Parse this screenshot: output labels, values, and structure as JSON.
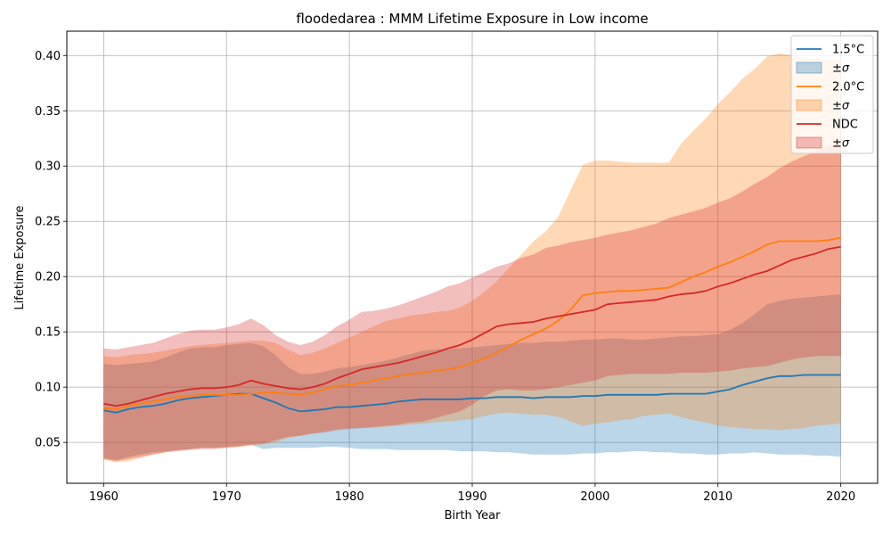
{
  "chart_data": {
    "type": "line",
    "title": "floodedarea : MMM Lifetime Exposure in Low income",
    "xlabel": "Birth Year",
    "ylabel": "Lifetime Exposure",
    "xlim": [
      1957,
      2023
    ],
    "ylim": [
      0.013,
      0.422
    ],
    "xticks": [
      1960,
      1970,
      1980,
      1990,
      2000,
      2010,
      2020
    ],
    "yticks": [
      0.05,
      0.1,
      0.15,
      0.2,
      0.25,
      0.3,
      0.35,
      0.4
    ],
    "grid": true,
    "legend_position": "top-right",
    "x": [
      1960,
      1961,
      1962,
      1963,
      1964,
      1965,
      1966,
      1967,
      1968,
      1969,
      1970,
      1971,
      1972,
      1973,
      1974,
      1975,
      1976,
      1977,
      1978,
      1979,
      1980,
      1981,
      1982,
      1983,
      1984,
      1985,
      1986,
      1987,
      1988,
      1989,
      1990,
      1991,
      1992,
      1993,
      1994,
      1995,
      1996,
      1997,
      1998,
      1999,
      2000,
      2001,
      2002,
      2003,
      2004,
      2005,
      2006,
      2007,
      2008,
      2009,
      2010,
      2011,
      2012,
      2013,
      2014,
      2015,
      2016,
      2017,
      2018,
      2019,
      2020
    ],
    "series": [
      {
        "name": "1.5°C",
        "band_name": "±σ",
        "color": "#1f77b4",
        "band_color": "#1f77b4",
        "band_opacity": 0.3,
        "values": [
          0.079,
          0.077,
          0.08,
          0.082,
          0.083,
          0.085,
          0.088,
          0.09,
          0.091,
          0.092,
          0.093,
          0.094,
          0.094,
          0.09,
          0.086,
          0.081,
          0.078,
          0.079,
          0.08,
          0.082,
          0.082,
          0.083,
          0.084,
          0.085,
          0.087,
          0.088,
          0.089,
          0.089,
          0.089,
          0.089,
          0.09,
          0.09,
          0.091,
          0.091,
          0.091,
          0.09,
          0.091,
          0.091,
          0.091,
          0.092,
          0.092,
          0.093,
          0.093,
          0.093,
          0.093,
          0.093,
          0.094,
          0.094,
          0.094,
          0.094,
          0.096,
          0.098,
          0.102,
          0.105,
          0.108,
          0.11,
          0.11,
          0.111,
          0.111,
          0.111,
          0.111
        ],
        "upper": [
          0.121,
          0.12,
          0.121,
          0.122,
          0.123,
          0.127,
          0.131,
          0.135,
          0.136,
          0.136,
          0.138,
          0.139,
          0.14,
          0.137,
          0.129,
          0.118,
          0.112,
          0.112,
          0.114,
          0.117,
          0.118,
          0.12,
          0.122,
          0.124,
          0.127,
          0.13,
          0.133,
          0.134,
          0.135,
          0.135,
          0.136,
          0.137,
          0.138,
          0.139,
          0.14,
          0.14,
          0.141,
          0.141,
          0.142,
          0.143,
          0.143,
          0.144,
          0.144,
          0.143,
          0.143,
          0.144,
          0.145,
          0.146,
          0.146,
          0.147,
          0.148,
          0.152,
          0.158,
          0.166,
          0.175,
          0.178,
          0.18,
          0.181,
          0.182,
          0.183,
          0.184
        ],
        "lower": [
          0.036,
          0.034,
          0.037,
          0.039,
          0.041,
          0.042,
          0.043,
          0.044,
          0.045,
          0.045,
          0.046,
          0.047,
          0.048,
          0.044,
          0.045,
          0.045,
          0.045,
          0.045,
          0.046,
          0.046,
          0.045,
          0.044,
          0.044,
          0.044,
          0.043,
          0.043,
          0.043,
          0.043,
          0.043,
          0.042,
          0.042,
          0.042,
          0.041,
          0.041,
          0.04,
          0.039,
          0.039,
          0.039,
          0.039,
          0.04,
          0.04,
          0.041,
          0.041,
          0.042,
          0.042,
          0.041,
          0.041,
          0.04,
          0.04,
          0.039,
          0.039,
          0.04,
          0.04,
          0.041,
          0.04,
          0.039,
          0.039,
          0.039,
          0.038,
          0.038,
          0.037
        ]
      },
      {
        "name": "2.0°C",
        "band_name": "±σ",
        "color": "#ff7f0e",
        "band_color": "#ff7f0e",
        "band_opacity": 0.3,
        "values": [
          0.081,
          0.08,
          0.083,
          0.085,
          0.087,
          0.089,
          0.091,
          0.092,
          0.093,
          0.093,
          0.093,
          0.093,
          0.094,
          0.095,
          0.095,
          0.094,
          0.093,
          0.095,
          0.098,
          0.101,
          0.102,
          0.104,
          0.106,
          0.108,
          0.11,
          0.112,
          0.113,
          0.115,
          0.116,
          0.118,
          0.122,
          0.126,
          0.131,
          0.137,
          0.143,
          0.148,
          0.153,
          0.16,
          0.17,
          0.183,
          0.185,
          0.186,
          0.187,
          0.187,
          0.188,
          0.189,
          0.19,
          0.195,
          0.2,
          0.204,
          0.209,
          0.213,
          0.218,
          0.223,
          0.229,
          0.232,
          0.232,
          0.232,
          0.232,
          0.233,
          0.235
        ],
        "upper": [
          0.128,
          0.127,
          0.129,
          0.13,
          0.131,
          0.133,
          0.135,
          0.137,
          0.138,
          0.139,
          0.14,
          0.141,
          0.142,
          0.142,
          0.14,
          0.134,
          0.129,
          0.131,
          0.135,
          0.14,
          0.145,
          0.15,
          0.155,
          0.16,
          0.162,
          0.165,
          0.166,
          0.168,
          0.169,
          0.172,
          0.178,
          0.186,
          0.196,
          0.208,
          0.22,
          0.232,
          0.241,
          0.254,
          0.278,
          0.301,
          0.305,
          0.305,
          0.304,
          0.303,
          0.303,
          0.303,
          0.303,
          0.32,
          0.332,
          0.343,
          0.356,
          0.367,
          0.379,
          0.388,
          0.399,
          0.402,
          0.4,
          0.398,
          0.397,
          0.396,
          0.395
        ],
        "lower": [
          0.034,
          0.032,
          0.033,
          0.036,
          0.039,
          0.041,
          0.043,
          0.044,
          0.045,
          0.045,
          0.045,
          0.046,
          0.047,
          0.048,
          0.05,
          0.054,
          0.056,
          0.058,
          0.06,
          0.062,
          0.063,
          0.063,
          0.063,
          0.064,
          0.065,
          0.066,
          0.067,
          0.068,
          0.069,
          0.07,
          0.071,
          0.074,
          0.076,
          0.077,
          0.076,
          0.075,
          0.075,
          0.073,
          0.069,
          0.065,
          0.067,
          0.068,
          0.07,
          0.071,
          0.074,
          0.075,
          0.076,
          0.073,
          0.07,
          0.068,
          0.065,
          0.064,
          0.063,
          0.062,
          0.062,
          0.061,
          0.062,
          0.063,
          0.065,
          0.066,
          0.067
        ]
      },
      {
        "name": "NDC",
        "band_name": "±σ",
        "color": "#d62728",
        "band_color": "#d62728",
        "band_opacity": 0.3,
        "values": [
          0.085,
          0.083,
          0.085,
          0.088,
          0.091,
          0.094,
          0.096,
          0.098,
          0.099,
          0.099,
          0.1,
          0.102,
          0.106,
          0.103,
          0.101,
          0.099,
          0.098,
          0.1,
          0.103,
          0.108,
          0.112,
          0.116,
          0.118,
          0.12,
          0.122,
          0.125,
          0.128,
          0.131,
          0.135,
          0.138,
          0.143,
          0.149,
          0.155,
          0.157,
          0.158,
          0.159,
          0.162,
          0.164,
          0.166,
          0.168,
          0.17,
          0.175,
          0.176,
          0.177,
          0.178,
          0.179,
          0.182,
          0.184,
          0.185,
          0.187,
          0.191,
          0.194,
          0.198,
          0.202,
          0.205,
          0.21,
          0.215,
          0.218,
          0.221,
          0.225,
          0.227
        ],
        "upper": [
          0.135,
          0.134,
          0.136,
          0.138,
          0.14,
          0.144,
          0.148,
          0.151,
          0.152,
          0.152,
          0.154,
          0.157,
          0.162,
          0.156,
          0.147,
          0.141,
          0.138,
          0.141,
          0.147,
          0.155,
          0.161,
          0.168,
          0.169,
          0.171,
          0.174,
          0.178,
          0.182,
          0.186,
          0.191,
          0.194,
          0.199,
          0.204,
          0.209,
          0.212,
          0.217,
          0.22,
          0.226,
          0.228,
          0.231,
          0.233,
          0.235,
          0.238,
          0.24,
          0.242,
          0.245,
          0.248,
          0.253,
          0.256,
          0.259,
          0.262,
          0.267,
          0.271,
          0.277,
          0.284,
          0.29,
          0.298,
          0.304,
          0.309,
          0.313,
          0.318,
          0.322
        ],
        "lower": [
          0.035,
          0.033,
          0.035,
          0.037,
          0.039,
          0.041,
          0.042,
          0.043,
          0.044,
          0.044,
          0.045,
          0.046,
          0.048,
          0.049,
          0.052,
          0.055,
          0.056,
          0.058,
          0.059,
          0.061,
          0.062,
          0.063,
          0.064,
          0.065,
          0.066,
          0.068,
          0.069,
          0.072,
          0.075,
          0.078,
          0.084,
          0.092,
          0.097,
          0.098,
          0.097,
          0.097,
          0.098,
          0.1,
          0.102,
          0.104,
          0.106,
          0.11,
          0.111,
          0.112,
          0.112,
          0.112,
          0.112,
          0.113,
          0.113,
          0.113,
          0.114,
          0.115,
          0.117,
          0.118,
          0.119,
          0.122,
          0.125,
          0.127,
          0.128,
          0.128,
          0.128
        ]
      }
    ]
  }
}
